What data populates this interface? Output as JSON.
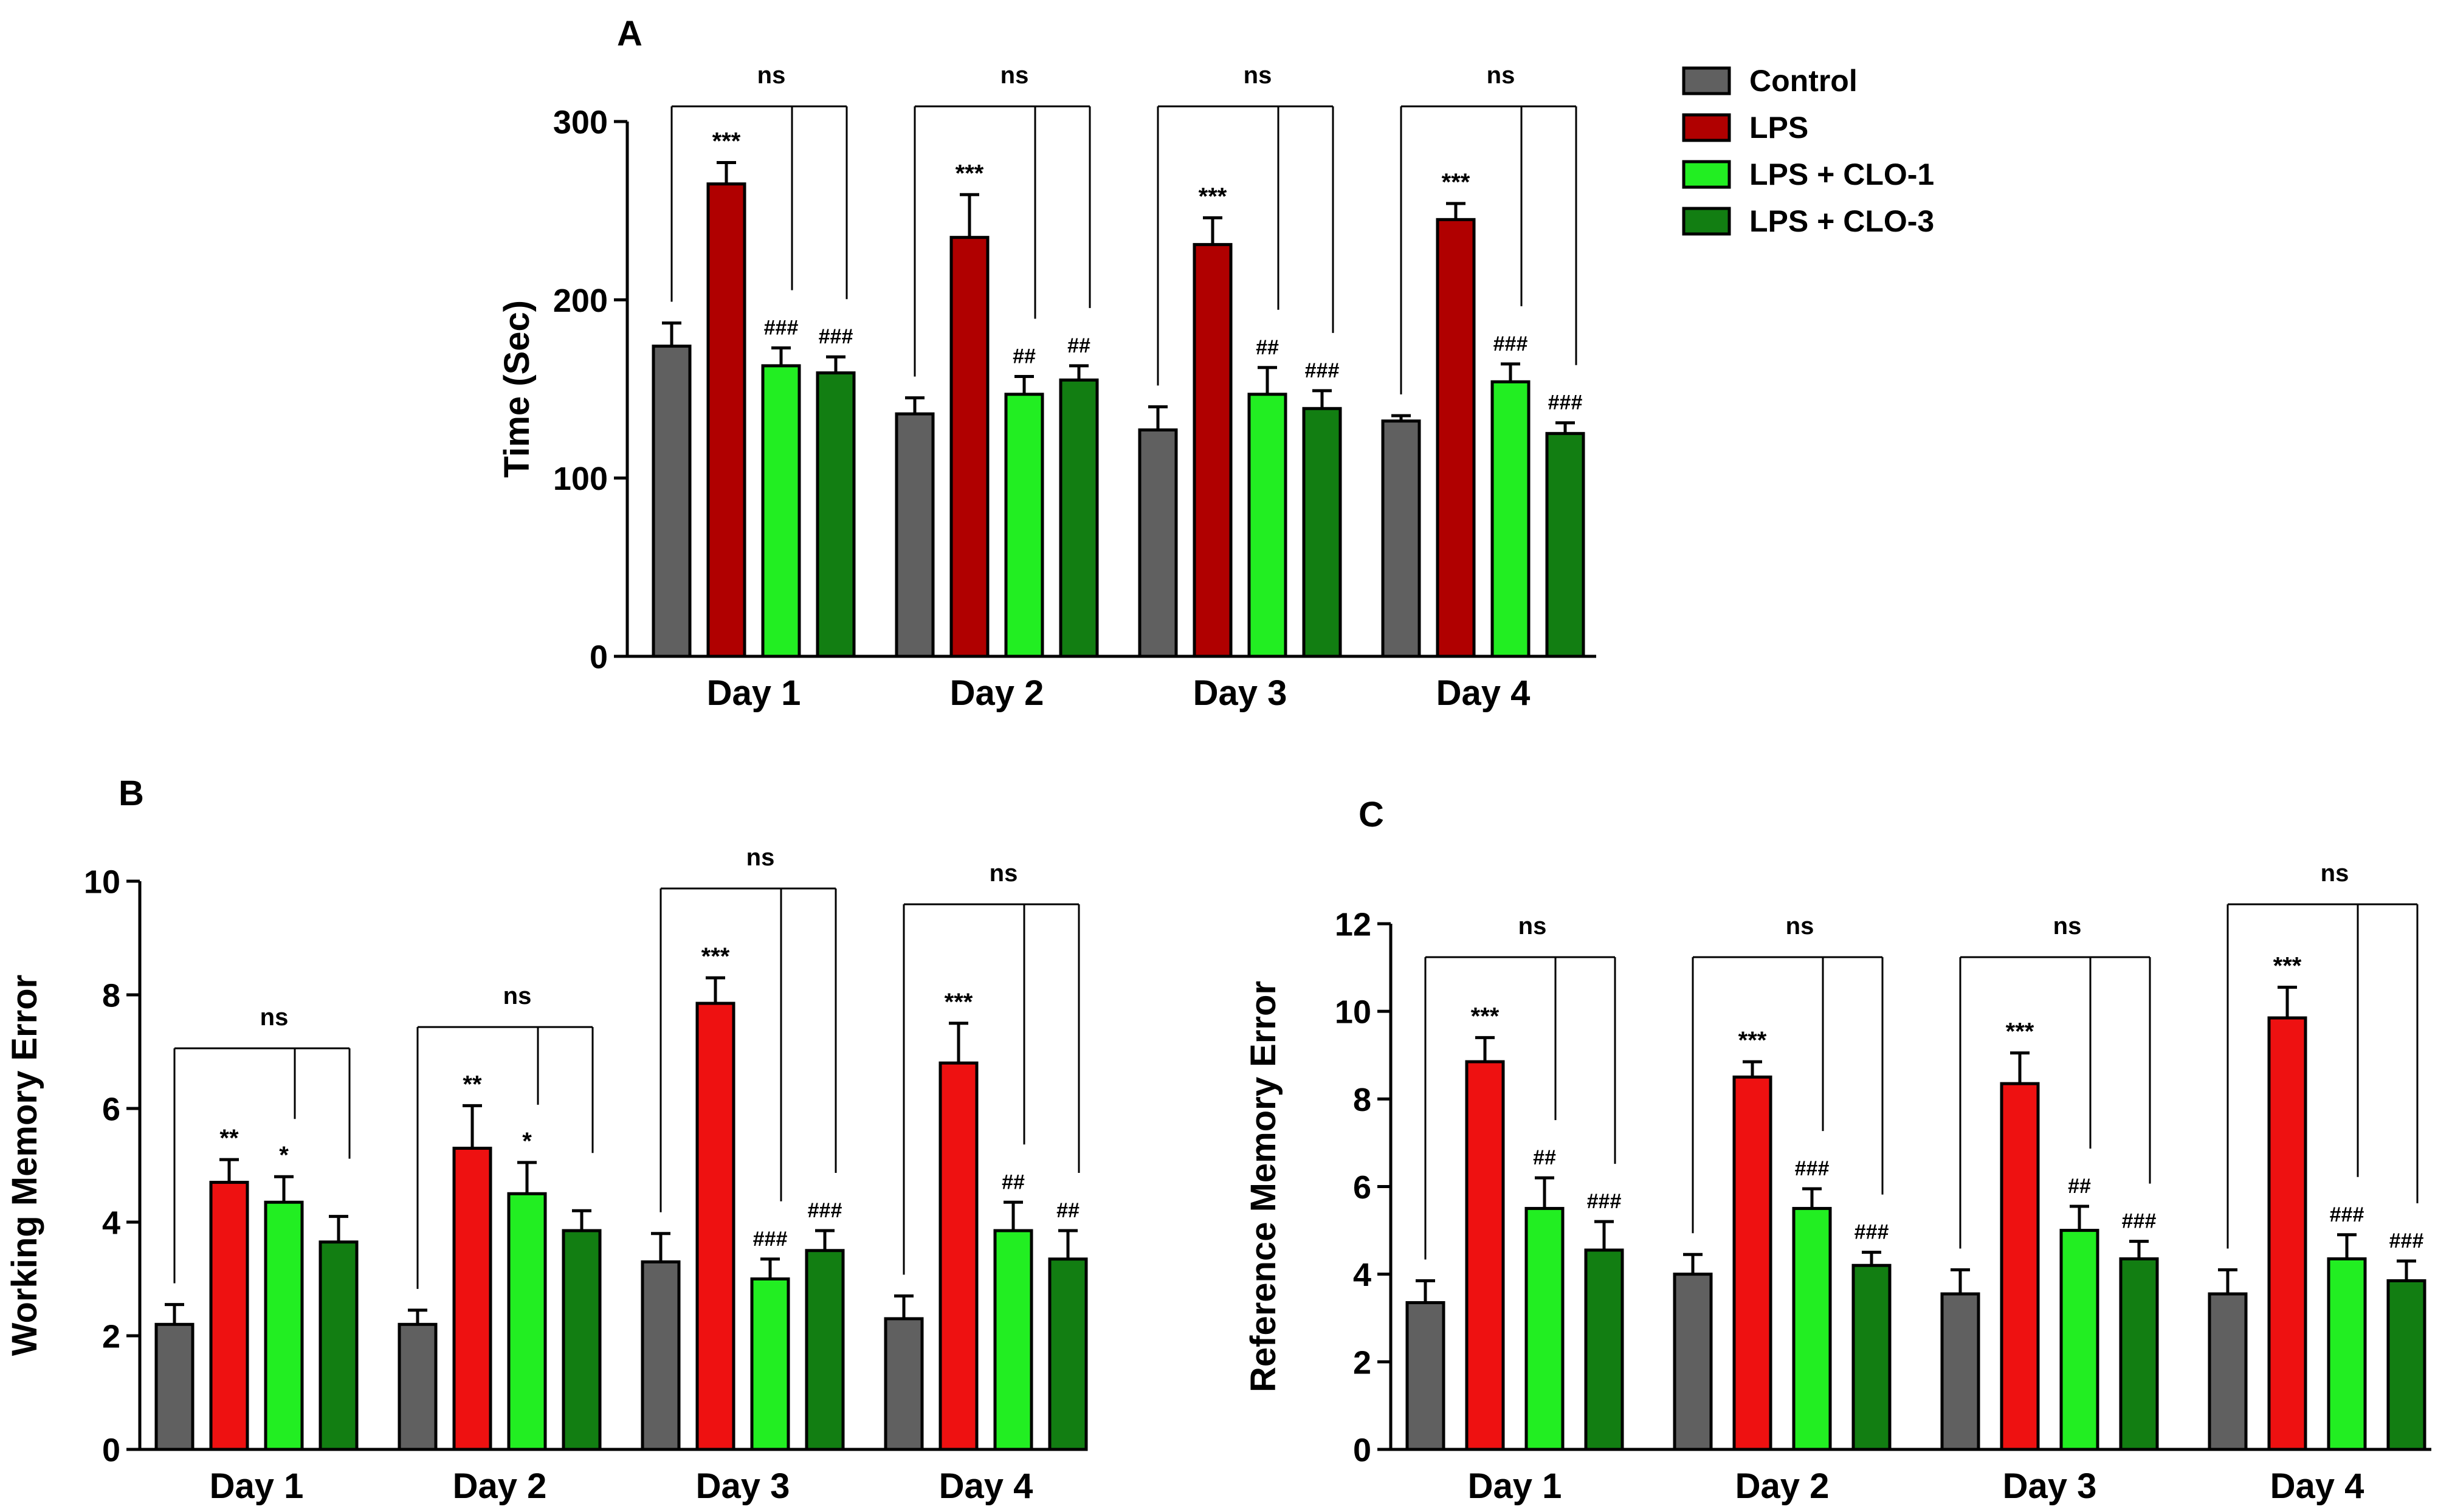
{
  "legend": {
    "placement": "top-right",
    "items": [
      {
        "label": "Control",
        "color": "#606060"
      },
      {
        "label": "LPS",
        "color": "#B00000"
      },
      {
        "label": "LPS + CLO-1",
        "color": "#22EE22"
      },
      {
        "label": "LPS + CLO-3",
        "color": "#127E12"
      }
    ]
  },
  "chart_data": [
    {
      "panel": "A",
      "type": "bar",
      "title": "A",
      "xlabel": "",
      "ylabel": "Time (Sec)",
      "ylim": [
        0,
        300
      ],
      "yticks": [
        "0",
        "100",
        "200",
        "300"
      ],
      "categories": [
        "Day 1",
        "Day 2",
        "Day 3",
        "Day 4"
      ],
      "series": [
        {
          "name": "Control",
          "color": "#606060",
          "values": [
            174,
            136,
            127,
            132
          ],
          "errors": [
            13,
            9,
            13,
            3
          ],
          "labels": [
            "",
            "",
            "",
            ""
          ]
        },
        {
          "name": "LPS",
          "color": "#B00000",
          "values": [
            265,
            235,
            231,
            245
          ],
          "errors": [
            12,
            24,
            15,
            9
          ],
          "labels": [
            "***",
            "***",
            "***",
            "***"
          ]
        },
        {
          "name": "LPS + CLO-1",
          "color": "#22EE22",
          "values": [
            163,
            147,
            147,
            154
          ],
          "errors": [
            10,
            10,
            15,
            10
          ],
          "labels": [
            "###",
            "##",
            "##",
            "###"
          ]
        },
        {
          "name": "LPS + CLO-3",
          "color": "#127E12",
          "values": [
            159,
            155,
            139,
            125
          ],
          "errors": [
            9,
            8,
            10,
            6
          ],
          "labels": [
            "###",
            "##",
            "###",
            "###"
          ]
        }
      ],
      "comparisons": [
        {
          "category": "Day 1",
          "label": "ns"
        },
        {
          "category": "Day 2",
          "label": "ns"
        },
        {
          "category": "Day 3",
          "label": "ns"
        },
        {
          "category": "Day 4",
          "label": "ns"
        }
      ]
    },
    {
      "panel": "B",
      "type": "bar",
      "title": "B",
      "xlabel": "",
      "ylabel": "Working Memory Error",
      "ylim": [
        0,
        10
      ],
      "yticks": [
        "0",
        "2",
        "4",
        "6",
        "8",
        "10"
      ],
      "categories": [
        "Day 1",
        "Day 2",
        "Day 3",
        "Day 4"
      ],
      "series": [
        {
          "name": "Control",
          "color": "#606060",
          "values": [
            2.2,
            2.2,
            3.3,
            2.3
          ],
          "errors": [
            0.35,
            0.25,
            0.5,
            0.4
          ],
          "labels": [
            "",
            "",
            "",
            ""
          ]
        },
        {
          "name": "LPS",
          "color": "#EE1111",
          "values": [
            4.7,
            5.3,
            7.85,
            6.8
          ],
          "errors": [
            0.4,
            0.75,
            0.45,
            0.7
          ],
          "labels": [
            "**",
            "**",
            "***",
            "***"
          ]
        },
        {
          "name": "LPS + CLO-1",
          "color": "#22EE22",
          "values": [
            4.35,
            4.5,
            3.0,
            3.85
          ],
          "errors": [
            0.45,
            0.55,
            0.35,
            0.5
          ],
          "labels": [
            "*",
            "*",
            "###",
            "##"
          ]
        },
        {
          "name": "LPS + CLO-3",
          "color": "#127E12",
          "values": [
            3.65,
            3.85,
            3.5,
            3.35
          ],
          "errors": [
            0.45,
            0.35,
            0.35,
            0.5
          ],
          "labels": [
            "",
            "",
            "###",
            "##"
          ]
        }
      ],
      "comparisons": [
        {
          "category": "Day 1",
          "label": "ns"
        },
        {
          "category": "Day 2",
          "label": "ns"
        },
        {
          "category": "Day 3",
          "label": "ns"
        },
        {
          "category": "Day 4",
          "label": "ns"
        }
      ]
    },
    {
      "panel": "C",
      "type": "bar",
      "title": "C",
      "xlabel": "",
      "ylabel": "Reference Memory Error",
      "ylim": [
        0,
        12
      ],
      "yticks": [
        "0",
        "2",
        "4",
        "6",
        "8",
        "10",
        "12"
      ],
      "categories": [
        "Day 1",
        "Day 2",
        "Day 3",
        "Day 4"
      ],
      "series": [
        {
          "name": "Control",
          "color": "#606060",
          "values": [
            3.35,
            4.0,
            3.55,
            3.55
          ],
          "errors": [
            0.5,
            0.45,
            0.55,
            0.55
          ],
          "labels": [
            "",
            "",
            "",
            ""
          ]
        },
        {
          "name": "LPS",
          "color": "#EE1111",
          "values": [
            8.85,
            8.5,
            8.35,
            9.85
          ],
          "errors": [
            0.55,
            0.35,
            0.7,
            0.7
          ],
          "labels": [
            "***",
            "***",
            "***",
            "***"
          ]
        },
        {
          "name": "LPS + CLO-1",
          "color": "#22EE22",
          "values": [
            5.5,
            5.5,
            5.0,
            4.35
          ],
          "errors": [
            0.7,
            0.45,
            0.55,
            0.55
          ],
          "labels": [
            "##",
            "###",
            "##",
            "###"
          ]
        },
        {
          "name": "LPS + CLO-3",
          "color": "#127E12",
          "values": [
            4.55,
            4.2,
            4.35,
            3.85
          ],
          "errors": [
            0.65,
            0.3,
            0.4,
            0.45
          ],
          "labels": [
            "###",
            "###",
            "###",
            "###"
          ]
        }
      ],
      "comparisons": [
        {
          "category": "Day 1",
          "label": "ns"
        },
        {
          "category": "Day 2",
          "label": "ns"
        },
        {
          "category": "Day 3",
          "label": "ns"
        },
        {
          "category": "Day 4",
          "label": "ns"
        }
      ]
    }
  ]
}
